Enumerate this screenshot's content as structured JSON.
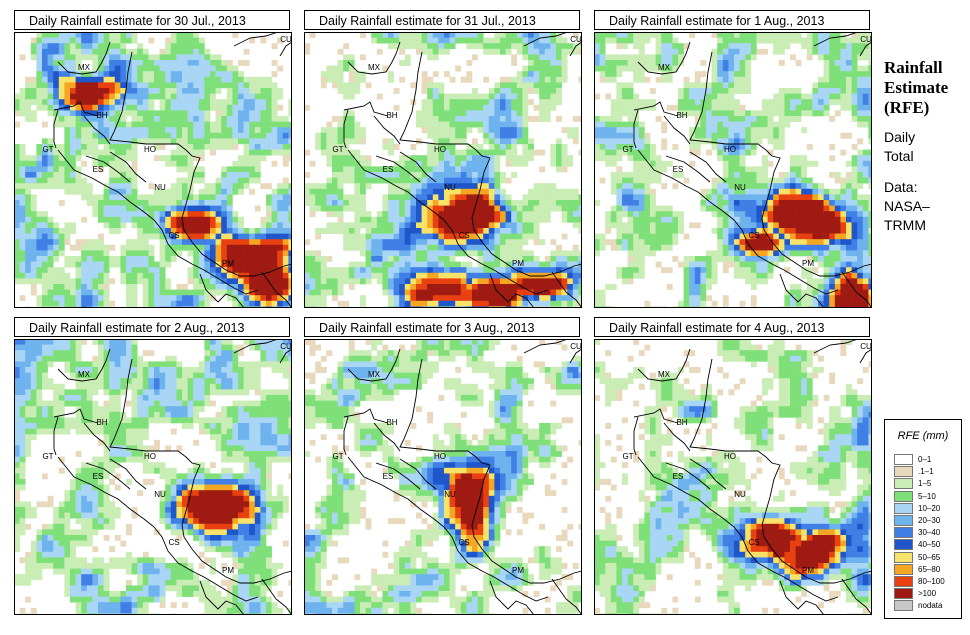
{
  "panels": [
    {
      "title": "Daily Rainfall estimate for  30 Jul., 2013",
      "hot": [
        [
          250,
          255,
          4,
          3
        ],
        [
          264,
          280,
          3,
          3
        ],
        [
          190,
          220,
          3,
          2
        ],
        [
          88,
          90,
          4,
          2
        ]
      ]
    },
    {
      "title": "Daily Rainfall estimate for  31 Jul., 2013",
      "hot": [
        [
          468,
          215,
          5,
          3
        ],
        [
          440,
          288,
          4,
          2
        ],
        [
          490,
          290,
          4,
          2
        ],
        [
          540,
          282,
          4,
          2
        ]
      ]
    },
    {
      "title": "Daily Rainfall estimate for  1 Aug., 2013",
      "hot": [
        [
          800,
          218,
          5,
          3
        ],
        [
          848,
          290,
          3,
          4
        ],
        [
          760,
          240,
          3,
          2
        ]
      ]
    },
    {
      "title": "Daily Rainfall estimate for  2 Aug., 2013",
      "hot": [
        [
          210,
          502,
          5,
          3
        ]
      ]
    },
    {
      "title": "Daily Rainfall estimate for  3 Aug., 2013",
      "hot": [
        [
          468,
          500,
          3,
          5
        ]
      ]
    },
    {
      "title": "Daily Rainfall estimate for  4 Aug., 2013",
      "hot": [
        [
          775,
          535,
          5,
          3
        ],
        [
          805,
          550,
          4,
          3
        ]
      ]
    }
  ],
  "map_labels": [
    "MX",
    "BH",
    "GT",
    "HO",
    "ES",
    "NU",
    "CS",
    "PM",
    "CU"
  ],
  "title_block": {
    "line1": "Rainfall",
    "line2": "Estimate",
    "line3": "(RFE)",
    "daily": "Daily",
    "total": "Total",
    "data_label": "Data:",
    "source1": "NASA–",
    "source2": "TRMM"
  },
  "legend": {
    "title": "RFE (mm)",
    "items": [
      {
        "label": "0–1",
        "color": "#ffffff"
      },
      {
        "label": ".1–1",
        "color": "#e8d9bd"
      },
      {
        "label": "1–5",
        "color": "#c9edb4"
      },
      {
        "label": "5–10",
        "color": "#7fe07a"
      },
      {
        "label": "10–20",
        "color": "#a9d6f5"
      },
      {
        "label": "20–30",
        "color": "#6fb3ee"
      },
      {
        "label": "30–40",
        "color": "#3f7fe6"
      },
      {
        "label": "40–50",
        "color": "#1f56c9"
      },
      {
        "label": "50–65",
        "color": "#f7e36a"
      },
      {
        "label": "65–80",
        "color": "#f5a623"
      },
      {
        "label": "80–100",
        "color": "#e84010"
      },
      {
        "label": ">100",
        "color": "#9e1a12"
      },
      {
        "label": "nodata",
        "color": "#c8c8c8"
      }
    ]
  }
}
